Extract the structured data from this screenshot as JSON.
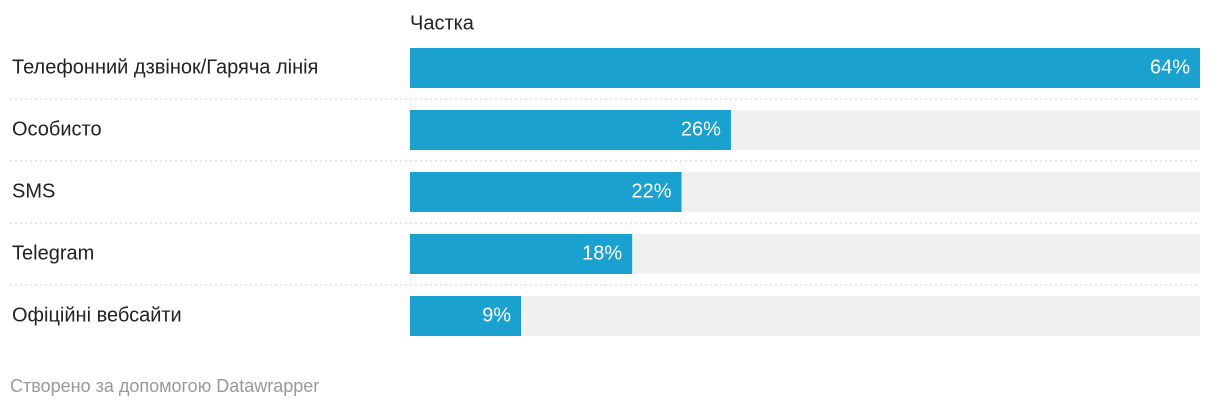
{
  "chart_data": {
    "type": "bar",
    "orientation": "horizontal",
    "column_header": "Частка",
    "categories": [
      "Телефонний дзвінок/Гаряча лінія",
      "Особисто",
      "SMS",
      "Telegram",
      "Офіційні вебсайти"
    ],
    "values": [
      64,
      26,
      22,
      18,
      9
    ],
    "value_labels": [
      "64%",
      "26%",
      "22%",
      "18%",
      "9%"
    ],
    "color": "#1aa1cf",
    "credit": "Створено за допомогою Datawrapper"
  }
}
